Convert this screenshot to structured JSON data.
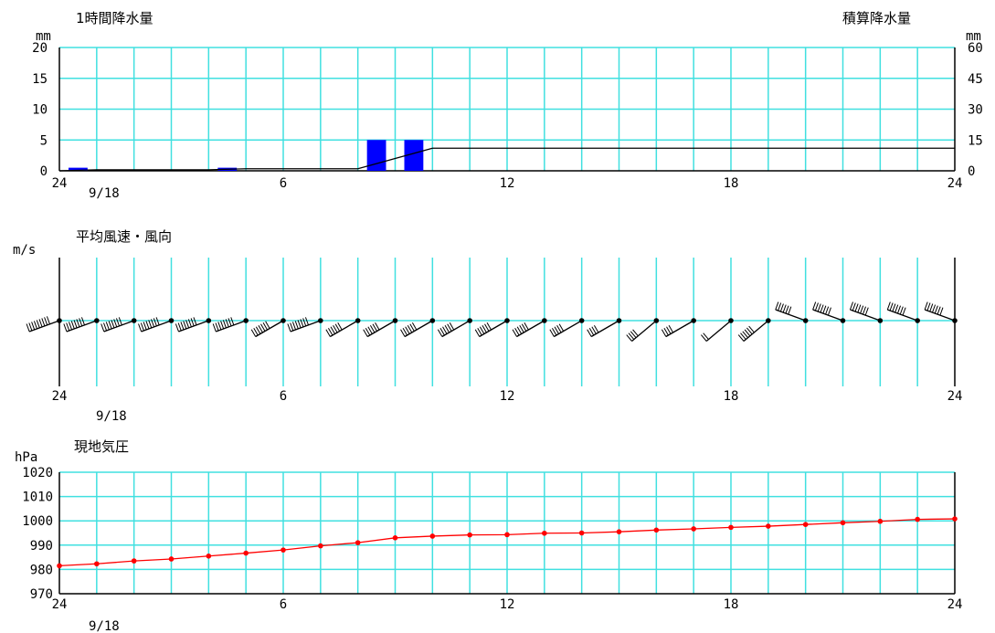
{
  "chart_data": [
    {
      "type": "bar",
      "title": "1時間降水量",
      "title_right": "積算降水量",
      "ylabel": "mm",
      "ylabel_right": "mm",
      "ylim": [
        0,
        20
      ],
      "yticks": [
        "20",
        "15",
        "10",
        "5",
        "0"
      ],
      "ylim_right": [
        0,
        60
      ],
      "yticks_right": [
        "60",
        "45",
        "30",
        "15",
        "0"
      ],
      "xticks": [
        "24",
        "6",
        "12",
        "18",
        "24"
      ],
      "date_label": "9/18",
      "grid": true,
      "hours": [
        1,
        2,
        3,
        4,
        5,
        6,
        7,
        8,
        9,
        10,
        11,
        12,
        13,
        14,
        15,
        16,
        17,
        18,
        19,
        20,
        21,
        22,
        23,
        24
      ],
      "values": [
        0.5,
        0,
        0,
        0,
        0.5,
        0,
        0,
        0,
        5,
        5,
        0,
        0,
        0,
        0,
        0,
        0,
        0,
        0,
        0,
        0,
        0,
        0,
        0,
        0
      ],
      "cumulative": [
        0.5,
        0.5,
        0.5,
        0.5,
        1,
        1,
        1,
        1,
        6,
        11,
        11,
        11,
        11,
        11,
        11,
        11,
        11,
        11,
        11,
        11,
        11,
        11,
        11,
        11
      ],
      "colors": {
        "bar": "#0000ff",
        "cumulative_line": "#000000",
        "grid": "#40e0e0"
      }
    },
    {
      "type": "wind",
      "title": "平均風速・風向",
      "ylabel": "m/s",
      "xticks": [
        "24",
        "6",
        "12",
        "18",
        "24"
      ],
      "date_label": "9/18",
      "grid": true,
      "hours": [
        0,
        1,
        2,
        3,
        4,
        5,
        6,
        7,
        8,
        9,
        10,
        11,
        12,
        13,
        14,
        15,
        16,
        17,
        18,
        19,
        20,
        21,
        22,
        23,
        24
      ],
      "directions_deg": [
        250,
        250,
        250,
        250,
        250,
        250,
        240,
        250,
        240,
        240,
        240,
        240,
        240,
        240,
        240,
        240,
        230,
        240,
        230,
        230,
        290,
        290,
        290,
        290,
        290
      ],
      "speeds_ms": [
        9,
        8,
        8,
        8,
        8,
        8,
        7,
        8,
        6,
        6,
        6,
        6,
        6,
        6,
        5,
        4,
        4,
        4,
        2,
        6,
        6,
        7,
        7,
        7,
        7
      ],
      "colors": {
        "barb": "#000000",
        "grid": "#40e0e0"
      }
    },
    {
      "type": "line",
      "title": "現地気圧",
      "ylabel": "hPa",
      "ylim": [
        970,
        1020
      ],
      "yticks": [
        "1020",
        "1010",
        "1000",
        "990",
        "980",
        "970"
      ],
      "xticks": [
        "24",
        "6",
        "12",
        "18",
        "24"
      ],
      "date_label": "9/18",
      "grid": true,
      "hours": [
        0,
        1,
        2,
        3,
        4,
        5,
        6,
        7,
        8,
        9,
        10,
        11,
        12,
        13,
        14,
        15,
        16,
        17,
        18,
        19,
        20,
        21,
        22,
        23,
        24
      ],
      "values": [
        981.5,
        982.3,
        983.5,
        984.3,
        985.5,
        986.7,
        988.0,
        989.7,
        991.0,
        993.0,
        993.7,
        994.2,
        994.3,
        994.9,
        995.0,
        995.5,
        996.2,
        996.7,
        997.3,
        997.8,
        998.5,
        999.2,
        999.8,
        1000.6,
        1000.8
      ],
      "colors": {
        "line": "#ff0000",
        "grid": "#40e0e0"
      }
    }
  ]
}
